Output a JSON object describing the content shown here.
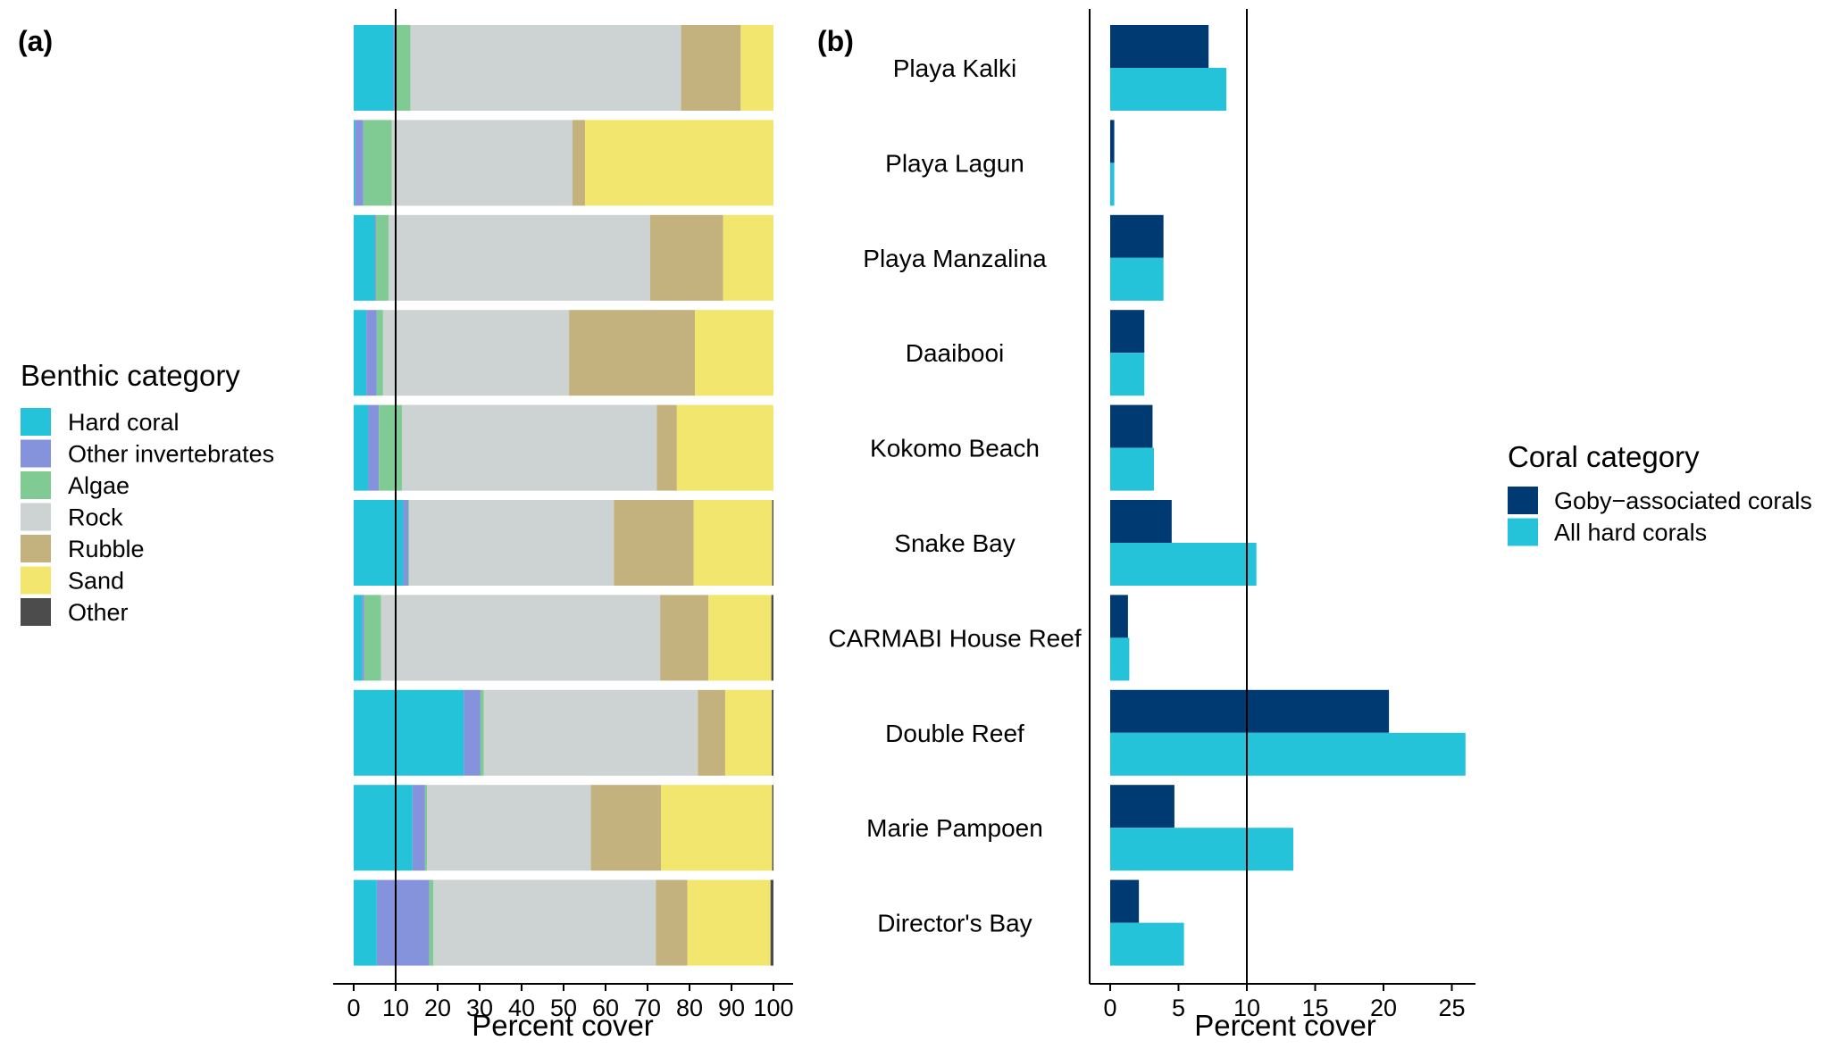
{
  "panels": {
    "a_label": "(a)",
    "b_label": "(b)"
  },
  "colors": {
    "hard_coral": "#25C3DA",
    "other_invertebrates": "#8593DD",
    "algae": "#7FCB93",
    "rock": "#CDD2D2",
    "rubble": "#C4B27E",
    "sand": "#F2E66E",
    "other": "#4C4C4C",
    "goby_associated": "#003A73",
    "all_hard_corals": "#25C3DA"
  },
  "chart_data": [
    {
      "type": "bar",
      "orientation": "horizontal",
      "stacked": true,
      "sites": [
        "Playa Kalki",
        "Playa Lagun",
        "Playa Manzalina",
        "Daaibooi",
        "Kokomo Beach",
        "Snake Bay",
        "CARMABI House Reef",
        "Double Reef",
        "Marie Pampoen",
        "Director's Bay"
      ],
      "series": [
        {
          "name": "Hard coral",
          "values": [
            9.5,
            0.3,
            5,
            3,
            3.5,
            11.8,
            2,
            26.2,
            14,
            5.5
          ]
        },
        {
          "name": "Other invertebrates",
          "values": [
            0.5,
            2,
            0.3,
            2.5,
            2.5,
            1.2,
            0.5,
            4,
            3,
            12.5
          ]
        },
        {
          "name": "Algae",
          "values": [
            3.5,
            6.8,
            3,
            1.5,
            5.5,
            0.2,
            4,
            0.8,
            0.5,
            1
          ]
        },
        {
          "name": "Rock",
          "values": [
            64.5,
            43,
            62.3,
            44.3,
            60.7,
            48.8,
            66.5,
            51,
            39,
            53
          ]
        },
        {
          "name": "Rubble",
          "values": [
            14.2,
            3,
            17.4,
            30,
            4.8,
            19,
            11.5,
            6.5,
            16.7,
            7.5
          ]
        },
        {
          "name": "Sand",
          "values": [
            7.8,
            44.9,
            12,
            18.7,
            23,
            18.7,
            15,
            11.1,
            26.5,
            19.8
          ]
        },
        {
          "name": "Other",
          "values": [
            0,
            0,
            0,
            0,
            0,
            0.3,
            0.5,
            0.4,
            0.3,
            0.7
          ]
        }
      ],
      "xlim": [
        0,
        100
      ],
      "xticks": [
        0,
        10,
        20,
        30,
        40,
        50,
        60,
        70,
        80,
        90,
        100
      ],
      "xlabel": "Percent cover",
      "reference_line": 10,
      "legend": {
        "title": "Benthic category",
        "position": "left"
      }
    },
    {
      "type": "bar",
      "orientation": "horizontal",
      "grouped": true,
      "sites": [
        "Playa Kalki",
        "Playa Lagun",
        "Playa Manzalina",
        "Daaibooi",
        "Kokomo Beach",
        "Snake Bay",
        "CARMABI House Reef",
        "Double Reef",
        "Marie Pampoen",
        "Director's Bay"
      ],
      "series": [
        {
          "name": "Goby−associated corals",
          "values": [
            7.2,
            0.3,
            3.9,
            2.5,
            3.1,
            4.5,
            1.3,
            20.4,
            4.7,
            2.1
          ]
        },
        {
          "name": "All hard corals",
          "values": [
            8.5,
            0.3,
            3.9,
            2.5,
            3.2,
            10.7,
            1.4,
            26,
            13.4,
            5.4
          ]
        }
      ],
      "xlim": [
        0,
        27
      ],
      "xticks": [
        0,
        5,
        10,
        15,
        20,
        25
      ],
      "xlabel": "Percent cover",
      "reference_line": 10,
      "legend": {
        "title": "Coral category",
        "position": "right"
      }
    }
  ]
}
